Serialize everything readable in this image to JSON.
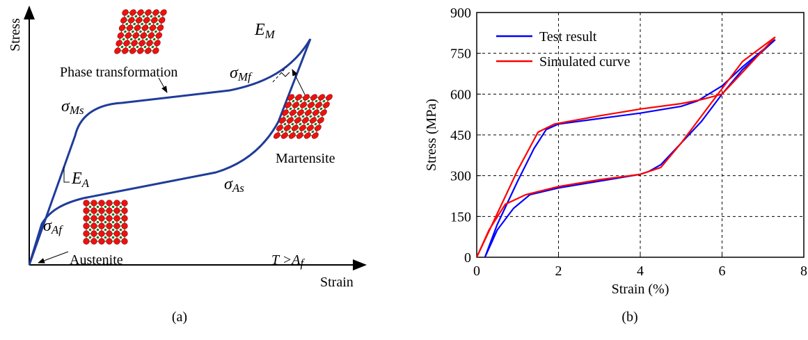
{
  "panel_a": {
    "caption": "(a)",
    "y_axis": "Stress",
    "x_axis": "Strain",
    "phase_transformation": "Phase transformation",
    "martensite": "Martensite",
    "austenite": "Austenite",
    "sigma_ms": {
      "symbol": "σ",
      "sub": "Ms"
    },
    "sigma_mf": {
      "symbol": "σ",
      "sub": "Mf"
    },
    "sigma_as": {
      "symbol": "σ",
      "sub": "As"
    },
    "sigma_af": {
      "symbol": "σ",
      "sub": "Af"
    },
    "e_m": {
      "symbol": "E",
      "sub": "M"
    },
    "e_a": {
      "symbol": "E",
      "sub": "A"
    },
    "temp": {
      "main": "T >A",
      "sub": "f"
    }
  },
  "chart_data": {
    "type": "line",
    "caption": "(b)",
    "x_label": "Strain (%)",
    "y_label": "Stress (MPa)",
    "xlim": [
      0,
      8
    ],
    "xticks": [
      0,
      2,
      4,
      6,
      8
    ],
    "ylim": [
      0,
      900
    ],
    "yticks": [
      0,
      150,
      300,
      450,
      600,
      750,
      900
    ],
    "grid": true,
    "legend": "upper left",
    "series": [
      {
        "name": "Test result",
        "color": "#0000ff",
        "x": [
          0.2,
          0.5,
          1.0,
          1.4,
          1.7,
          2.0,
          3.0,
          4.0,
          5.0,
          5.4,
          6.0,
          6.5,
          7.3,
          6.5,
          6.0,
          5.5,
          5.0,
          4.5,
          4.2,
          4.0,
          3.0,
          2.0,
          1.3,
          0.9,
          0.5,
          0.2
        ],
        "values": [
          0,
          120,
          280,
          400,
          470,
          490,
          510,
          530,
          555,
          575,
          630,
          700,
          800,
          690,
          600,
          500,
          420,
          340,
          315,
          305,
          280,
          255,
          230,
          180,
          100,
          0
        ]
      },
      {
        "name": "Simulated curve",
        "color": "#ff0000",
        "x": [
          0,
          0.5,
          1.0,
          1.5,
          1.9,
          3.0,
          4.0,
          5.0,
          5.5,
          6.0,
          6.5,
          7.3,
          6.5,
          6.0,
          5.5,
          5.0,
          4.5,
          4.0,
          3.0,
          2.0,
          1.2,
          0.7,
          0.3,
          0
        ],
        "values": [
          0,
          160,
          320,
          460,
          490,
          520,
          545,
          565,
          580,
          600,
          680,
          810,
          720,
          620,
          520,
          420,
          330,
          305,
          285,
          260,
          230,
          195,
          100,
          0
        ]
      }
    ]
  }
}
